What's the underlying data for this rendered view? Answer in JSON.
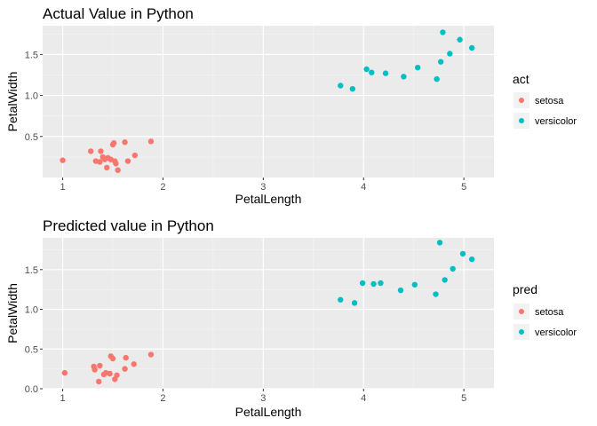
{
  "chart_data": [
    {
      "type": "scatter",
      "title": "Actual Value in Python",
      "xlabel": "PetalLength",
      "ylabel": "PetalWidth",
      "xlim": [
        0.8,
        5.3
      ],
      "ylim": [
        0.0,
        1.85
      ],
      "x_ticks": [
        1,
        2,
        3,
        4,
        5
      ],
      "x_tick_labels": [
        "1",
        "2",
        "3",
        "4",
        "5"
      ],
      "y_ticks": [
        0.5,
        1.0,
        1.5
      ],
      "y_tick_labels": [
        "0.5",
        "1.0",
        "1.5"
      ],
      "grid": true,
      "legend": {
        "title": "act",
        "placement": "right"
      },
      "series": [
        {
          "name": "setosa",
          "color": "#F8766D",
          "points": [
            [
              1.0,
              0.21
            ],
            [
              1.28,
              0.32
            ],
            [
              1.33,
              0.2
            ],
            [
              1.37,
              0.19
            ],
            [
              1.38,
              0.32
            ],
            [
              1.4,
              0.25
            ],
            [
              1.42,
              0.22
            ],
            [
              1.44,
              0.12
            ],
            [
              1.45,
              0.24
            ],
            [
              1.48,
              0.22
            ],
            [
              1.5,
              0.4
            ],
            [
              1.51,
              0.42
            ],
            [
              1.52,
              0.2
            ],
            [
              1.53,
              0.17
            ],
            [
              1.55,
              0.09
            ],
            [
              1.62,
              0.43
            ],
            [
              1.65,
              0.2
            ],
            [
              1.72,
              0.27
            ],
            [
              1.88,
              0.44
            ]
          ]
        },
        {
          "name": "versicolor",
          "color": "#00BFC4",
          "points": [
            [
              3.77,
              1.12
            ],
            [
              3.89,
              1.08
            ],
            [
              4.03,
              1.32
            ],
            [
              4.08,
              1.28
            ],
            [
              4.22,
              1.27
            ],
            [
              4.4,
              1.23
            ],
            [
              4.54,
              1.34
            ],
            [
              4.73,
              1.2
            ],
            [
              4.77,
              1.41
            ],
            [
              4.79,
              1.77
            ],
            [
              4.86,
              1.51
            ],
            [
              4.96,
              1.68
            ],
            [
              5.08,
              1.58
            ]
          ]
        }
      ]
    },
    {
      "type": "scatter",
      "title": "Predicted value in Python",
      "xlabel": "PetalLength",
      "ylabel": "PetalWidth",
      "xlim": [
        0.8,
        5.3
      ],
      "ylim": [
        0.0,
        1.9
      ],
      "x_ticks": [
        1,
        2,
        3,
        4,
        5
      ],
      "x_tick_labels": [
        "1",
        "2",
        "3",
        "4",
        "5"
      ],
      "y_ticks": [
        0.0,
        0.5,
        1.0,
        1.5
      ],
      "y_tick_labels": [
        "0.0",
        "0.5",
        "1.0",
        "1.5"
      ],
      "grid": true,
      "legend": {
        "title": "pred",
        "placement": "right"
      },
      "series": [
        {
          "name": "setosa",
          "color": "#F8766D",
          "points": [
            [
              1.02,
              0.2
            ],
            [
              1.31,
              0.28
            ],
            [
              1.32,
              0.24
            ],
            [
              1.36,
              0.09
            ],
            [
              1.37,
              0.29
            ],
            [
              1.41,
              0.18
            ],
            [
              1.43,
              0.2
            ],
            [
              1.47,
              0.19
            ],
            [
              1.48,
              0.41
            ],
            [
              1.5,
              0.38
            ],
            [
              1.52,
              0.12
            ],
            [
              1.54,
              0.17
            ],
            [
              1.62,
              0.25
            ],
            [
              1.63,
              0.39
            ],
            [
              1.71,
              0.31
            ],
            [
              1.88,
              0.43
            ]
          ]
        },
        {
          "name": "versicolor",
          "color": "#00BFC4",
          "points": [
            [
              3.77,
              1.12
            ],
            [
              3.91,
              1.08
            ],
            [
              3.99,
              1.33
            ],
            [
              4.1,
              1.32
            ],
            [
              4.17,
              1.33
            ],
            [
              4.37,
              1.24
            ],
            [
              4.51,
              1.31
            ],
            [
              4.72,
              1.19
            ],
            [
              4.76,
              1.84
            ],
            [
              4.81,
              1.37
            ],
            [
              4.89,
              1.51
            ],
            [
              4.99,
              1.7
            ],
            [
              5.08,
              1.63
            ]
          ]
        }
      ]
    }
  ]
}
